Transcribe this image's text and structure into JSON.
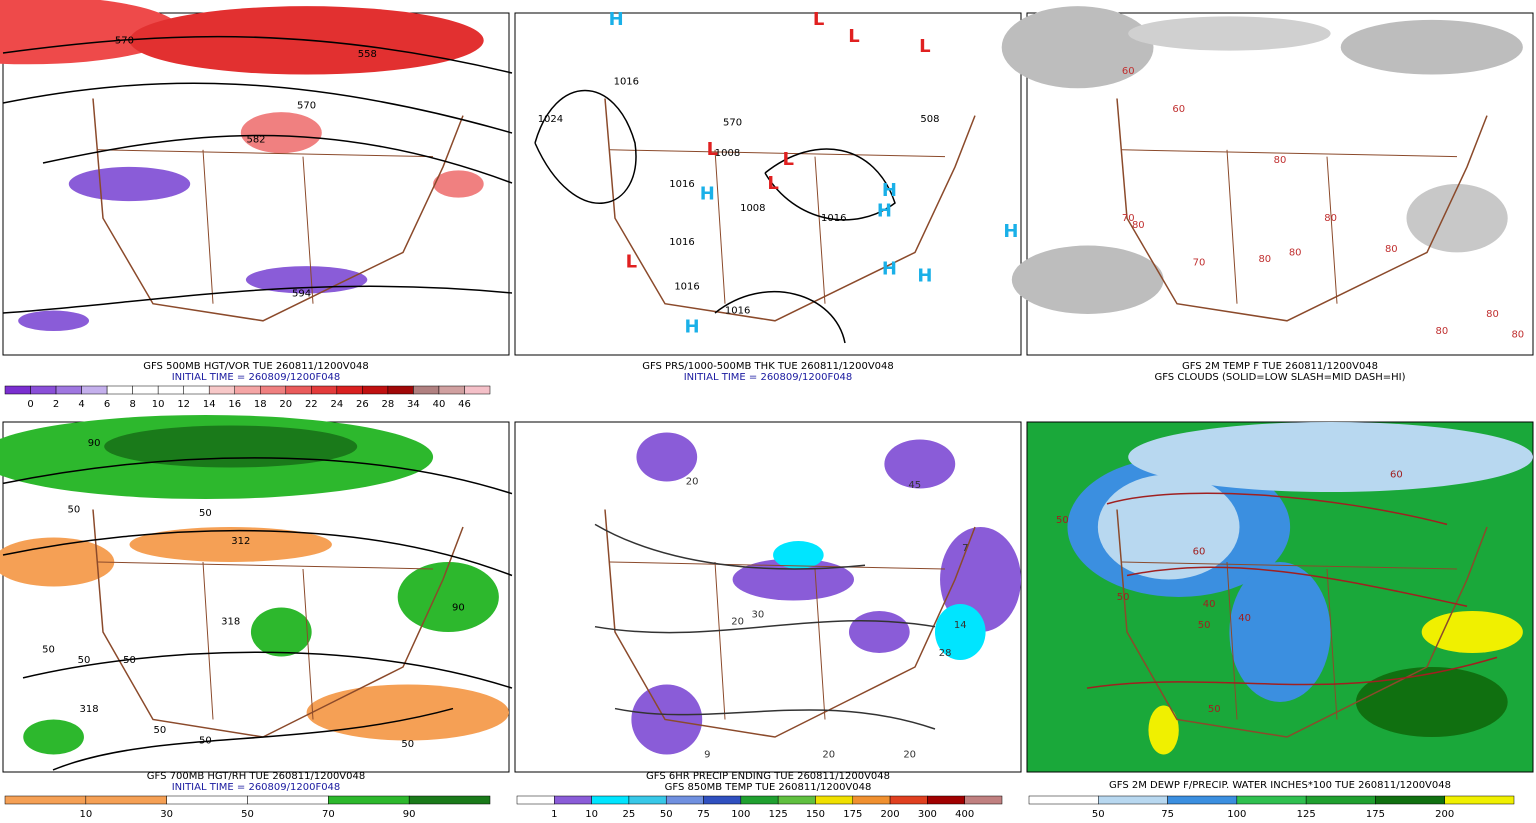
{
  "panels": [
    {
      "caption": [
        "GFS 500MB HGT/VOR TUE 260811/1200V048",
        "INITIAL TIME = 260809/1200F048"
      ],
      "map_labels": [
        "570",
        "558",
        "570",
        "582",
        "594"
      ],
      "legend": {
        "labels": [
          "0",
          "2",
          "4",
          "6",
          "8",
          "10",
          "12",
          "14",
          "16",
          "18",
          "20",
          "22",
          "24",
          "26",
          "28",
          "34",
          "40",
          "46"
        ],
        "colors": [
          "#7b2fd0",
          "#8a4fd8",
          "#9f77e0",
          "#c4b0ec",
          "#ffffff",
          "#ffffff",
          "#ffffff",
          "#ffffff",
          "#f7c8c8",
          "#f4a5a5",
          "#ef8080",
          "#e95b5b",
          "#e33b3b",
          "#d92020",
          "#c01010",
          "#a00808",
          "#b08080",
          "#d0a0a0",
          "#f4c0c8"
        ]
      }
    },
    {
      "caption": [
        "GFS PRS/1000-500MB THK TUE 260811/1200V048",
        "INITIAL TIME = 260809/1200F048"
      ],
      "map_labels": [
        "H",
        "L",
        "L",
        "L",
        "1016",
        "1024",
        "L",
        "1008",
        "L",
        "L",
        "H",
        "1016",
        "1008",
        "1016",
        "H",
        "H",
        "H",
        "L",
        "1016",
        "1016",
        "H",
        "H",
        "1016",
        "H",
        "570",
        "508"
      ]
    },
    {
      "caption": [
        "GFS 2M TEMP F TUE 260811/1200V048",
        "GFS CLOUDS (SOLID=LOW SLASH=MID DASH=HI)"
      ],
      "map_labels": [
        "60",
        "60",
        "70",
        "80",
        "80",
        "70",
        "80",
        "80",
        "80",
        "80",
        "80",
        "80",
        "80"
      ]
    },
    {
      "caption": [
        "GFS 700MB HGT/RH TUE 260811/1200V048",
        "INITIAL TIME = 260809/1200F048"
      ],
      "map_labels": [
        "90",
        "50",
        "50",
        "312",
        "318",
        "50",
        "50",
        "318",
        "50",
        "50",
        "50",
        "90",
        "50"
      ],
      "legend": {
        "labels": [
          "10",
          "30",
          "50",
          "70",
          "90"
        ],
        "colors": [
          "#f5a055",
          "#f5a055",
          "#ffffff",
          "#ffffff",
          "#2db82d",
          "#1a7a1a"
        ]
      }
    },
    {
      "caption": [
        "GFS 6HR PRECIP ENDING TUE 260811/1200V048",
        "GFS 850MB TEMP TUE 260811/1200V048"
      ],
      "map_labels": [
        "20",
        "45",
        "7",
        "30",
        "20",
        "14",
        "28",
        "9",
        "20",
        "20"
      ],
      "legend": {
        "labels": [
          "1",
          "10",
          "25",
          "50",
          "75",
          "100",
          "125",
          "150",
          "175",
          "200",
          "300",
          "400"
        ],
        "colors": [
          "#ffffff",
          "#8a5cd8",
          "#00e5ff",
          "#38c8e8",
          "#7090e0",
          "#3050c0",
          "#20a030",
          "#60c040",
          "#f0e000",
          "#f09030",
          "#e04020",
          "#a00000",
          "#c08080"
        ]
      }
    },
    {
      "caption": [
        "GFS 2M DEWP F/PRECIP. WATER INCHES*100 TUE 260811/1200V048"
      ],
      "map_labels": [
        "50",
        "60",
        "50",
        "40",
        "50",
        "40",
        "50",
        "60"
      ],
      "legend": {
        "labels": [
          "50",
          "75",
          "100",
          "125",
          "175",
          "200"
        ],
        "colors": [
          "#ffffff",
          "#b8d8f0",
          "#3b8fe0",
          "#30c050",
          "#20a030",
          "#107010",
          "#f0f000"
        ]
      }
    }
  ]
}
